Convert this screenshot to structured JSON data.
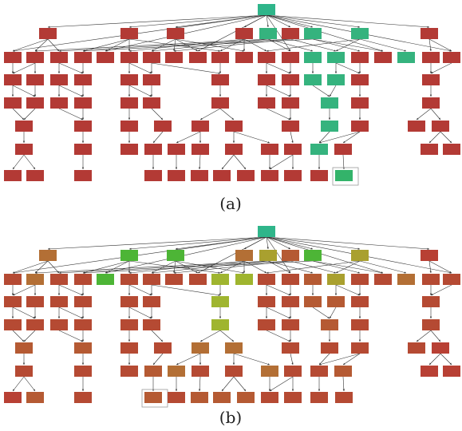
{
  "figure": {
    "panels": [
      {
        "caption": "(a)",
        "root": "#2fb58a",
        "default_color": "#b33a35",
        "highlight_color": "#35b37e",
        "target_color": "#33b36a"
      },
      {
        "caption": "(b)",
        "root": "#2fb58a",
        "default_color": "#b54a33",
        "palette": [
          "#b84034",
          "#b55a33",
          "#b36f35",
          "#a9a02f",
          "#9fb52f",
          "#4db536",
          "#2fb58a"
        ]
      }
    ]
  }
}
